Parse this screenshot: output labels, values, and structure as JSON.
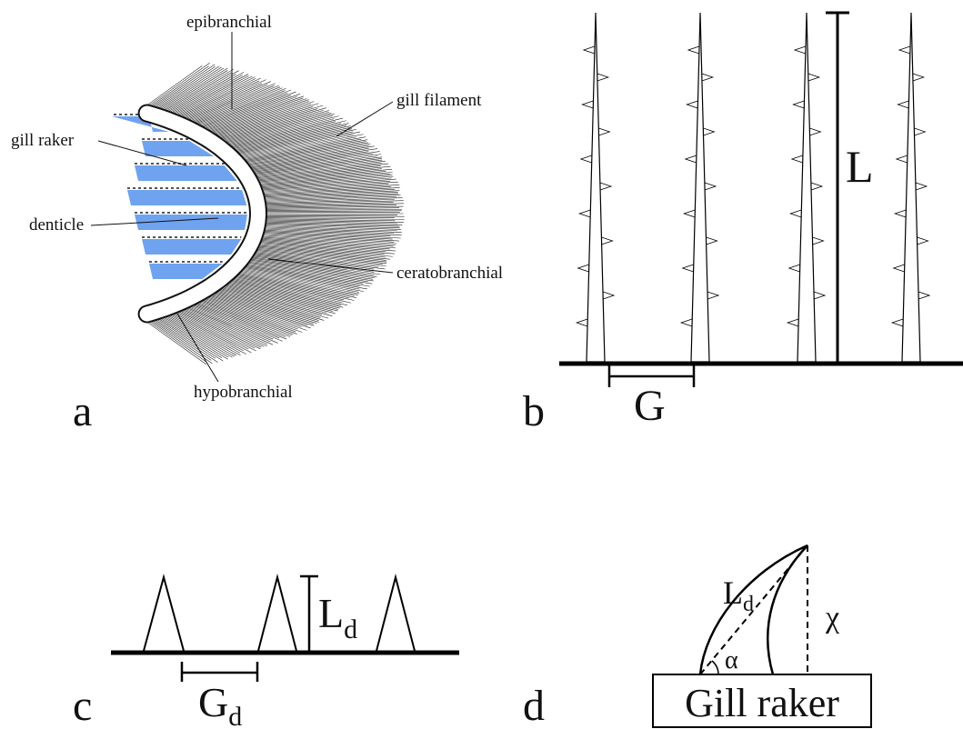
{
  "panels": {
    "a": "a",
    "b": "b",
    "c": "c",
    "d": "d"
  },
  "panel_a": {
    "epibranchial": "epibranchial",
    "gill_filament": "gill filament",
    "gill_raker": "gill raker",
    "denticle": "denticle",
    "ceratobranchial": "ceratobranchial",
    "hypobranchial": "hypobranchial"
  },
  "panel_b": {
    "length": "L",
    "gap": "G"
  },
  "panel_c": {
    "length": {
      "base": "L",
      "sub": "d"
    },
    "gap": {
      "base": "G",
      "sub": "d"
    }
  },
  "panel_d": {
    "length": {
      "base": "L",
      "sub": "d"
    },
    "height": "χ",
    "angle": "α",
    "box": "Gill raker"
  }
}
